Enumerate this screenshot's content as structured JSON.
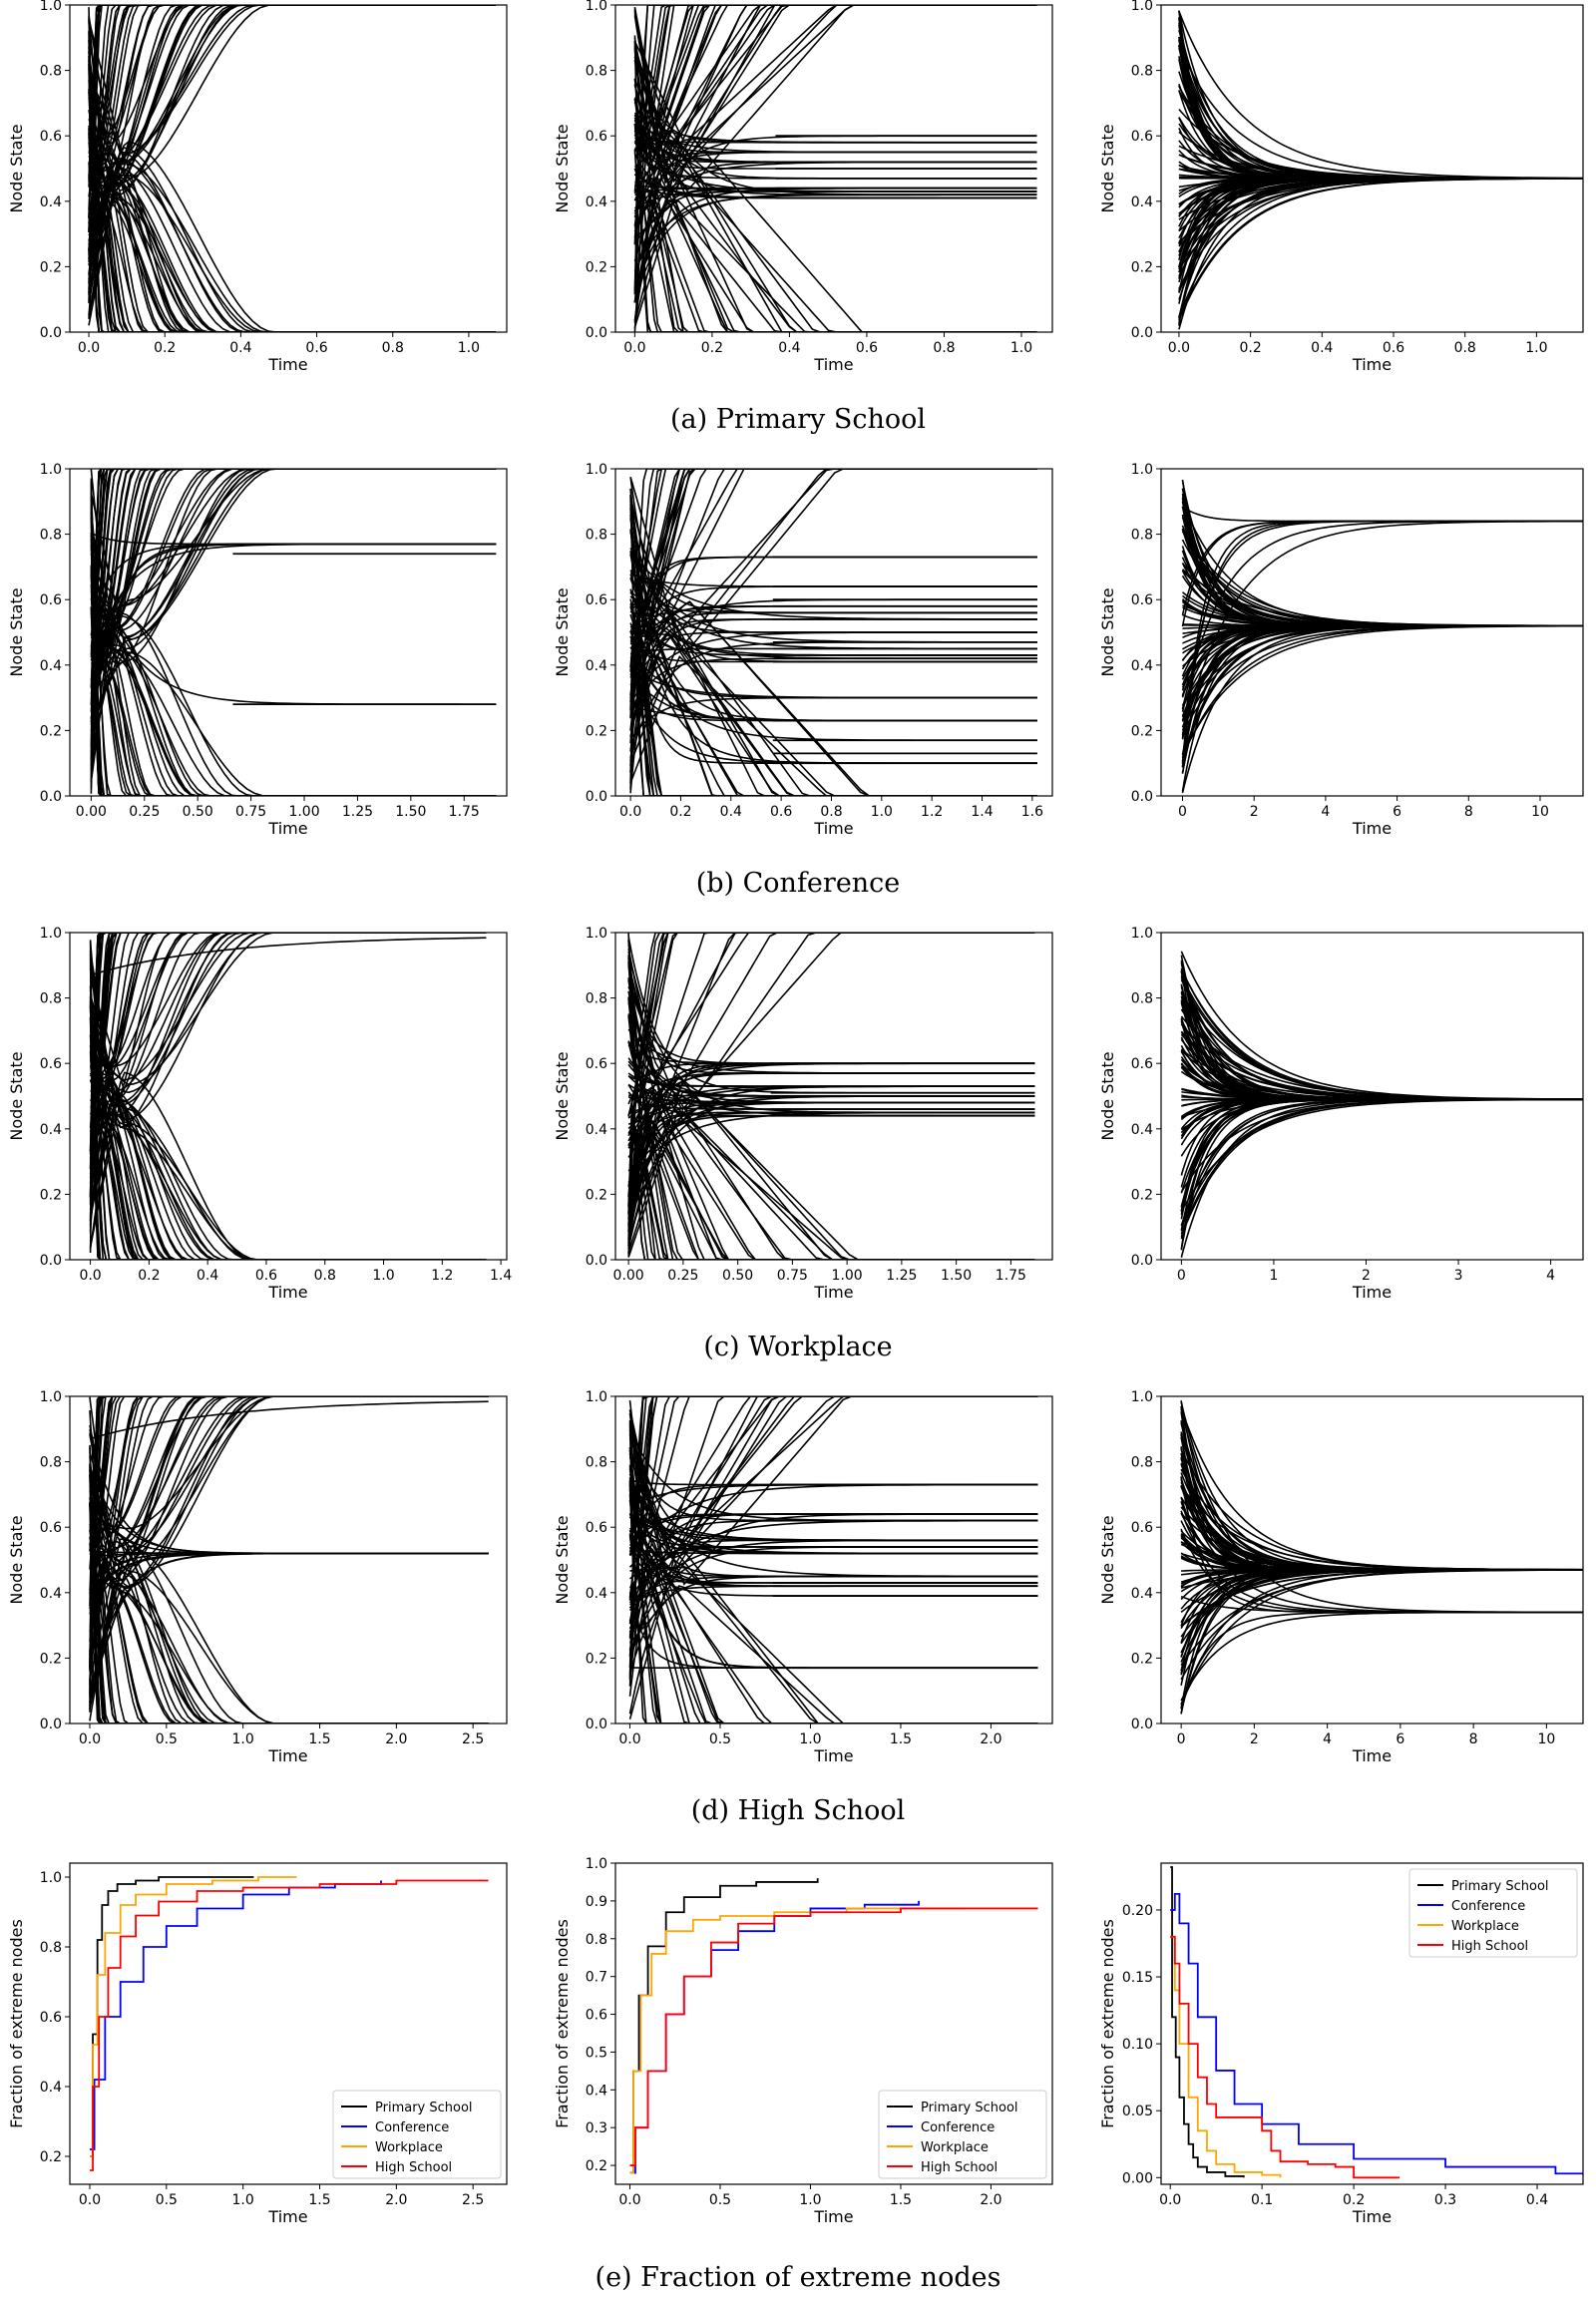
{
  "figure": {
    "captions": [
      "(a) Primary School",
      "(b) Conference",
      "(c) Workplace",
      "(d) High School",
      "(e) Fraction of extreme nodes"
    ]
  },
  "chart_data": [
    {
      "type": "line",
      "panel": "a-1",
      "xlabel": "Time",
      "ylabel": "Node State",
      "xlim": [
        -0.05,
        1.1
      ],
      "ylim": [
        0,
        1
      ],
      "xticks": [
        0.0,
        0.2,
        0.4,
        0.6,
        0.8,
        1.0
      ],
      "xtick_labels": [
        "0.0",
        "0.2",
        "0.4",
        "0.6",
        "0.8",
        "1.0"
      ],
      "yticks": [
        0,
        0.2,
        0.4,
        0.6,
        0.8,
        1.0
      ],
      "ytick_labels": [
        "0.0",
        "0.2",
        "0.4",
        "0.6",
        "0.8",
        "1.0"
      ],
      "dynamics": "polarize",
      "t_end": 1.07,
      "settled": []
    },
    {
      "type": "line",
      "panel": "a-2",
      "xlabel": "Time",
      "ylabel": "Node State",
      "xlim": [
        -0.05,
        1.08
      ],
      "ylim": [
        0,
        1
      ],
      "xticks": [
        0.0,
        0.2,
        0.4,
        0.6,
        0.8,
        1.0
      ],
      "xtick_labels": [
        "0.0",
        "0.2",
        "0.4",
        "0.6",
        "0.8",
        "1.0"
      ],
      "yticks": [
        0,
        0.2,
        0.4,
        0.6,
        0.8,
        1.0
      ],
      "ytick_labels": [
        "0.0",
        "0.2",
        "0.4",
        "0.6",
        "0.8",
        "1.0"
      ],
      "dynamics": "clusters",
      "t_end": 1.04,
      "settled": [
        0.6,
        0.58,
        0.55,
        0.52,
        0.5,
        0.47,
        0.44,
        0.43,
        0.42,
        0.41
      ]
    },
    {
      "type": "line",
      "panel": "a-3",
      "xlabel": "Time",
      "ylabel": "Node State",
      "xlim": [
        -0.05,
        1.13
      ],
      "ylim": [
        0,
        1
      ],
      "xticks": [
        0.0,
        0.2,
        0.4,
        0.6,
        0.8,
        1.0
      ],
      "xtick_labels": [
        "0.0",
        "0.2",
        "0.4",
        "0.6",
        "0.8",
        "1.0"
      ],
      "yticks": [
        0,
        0.2,
        0.4,
        0.6,
        0.8,
        1.0
      ],
      "ytick_labels": [
        "0.0",
        "0.2",
        "0.4",
        "0.6",
        "0.8",
        "1.0"
      ],
      "dynamics": "consensus",
      "t_end": 1.13,
      "settled": [
        0.47
      ]
    },
    {
      "type": "line",
      "panel": "b-1",
      "xlabel": "Time",
      "ylabel": "Node State",
      "xlim": [
        -0.1,
        1.95
      ],
      "ylim": [
        0,
        1
      ],
      "xticks": [
        0.0,
        0.25,
        0.5,
        0.75,
        1.0,
        1.25,
        1.5,
        1.75
      ],
      "xtick_labels": [
        "0.00",
        "0.25",
        "0.50",
        "0.75",
        "1.00",
        "1.25",
        "1.50",
        "1.75"
      ],
      "yticks": [
        0,
        0.2,
        0.4,
        0.6,
        0.8,
        1.0
      ],
      "ytick_labels": [
        "0.0",
        "0.2",
        "0.4",
        "0.6",
        "0.8",
        "1.0"
      ],
      "dynamics": "polarize",
      "t_end": 1.9,
      "settled": [
        0.77,
        0.74,
        0.28
      ]
    },
    {
      "type": "line",
      "panel": "b-2",
      "xlabel": "Time",
      "ylabel": "Node State",
      "xlim": [
        -0.06,
        1.68
      ],
      "ylim": [
        0,
        1
      ],
      "xticks": [
        0.0,
        0.2,
        0.4,
        0.6,
        0.8,
        1.0,
        1.2,
        1.4,
        1.6
      ],
      "xtick_labels": [
        "0.0",
        "0.2",
        "0.4",
        "0.6",
        "0.8",
        "1.0",
        "1.2",
        "1.4",
        "1.6"
      ],
      "yticks": [
        0,
        0.2,
        0.4,
        0.6,
        0.8,
        1.0
      ],
      "ytick_labels": [
        "0.0",
        "0.2",
        "0.4",
        "0.6",
        "0.8",
        "1.0"
      ],
      "dynamics": "clusters",
      "t_end": 1.62,
      "settled": [
        0.73,
        0.64,
        0.6,
        0.58,
        0.56,
        0.54,
        0.5,
        0.47,
        0.45,
        0.43,
        0.42,
        0.41,
        0.3,
        0.23,
        0.17,
        0.13,
        0.1
      ]
    },
    {
      "type": "line",
      "panel": "b-3",
      "xlabel": "Time",
      "ylabel": "Node State",
      "xlim": [
        -0.6,
        11.2
      ],
      "ylim": [
        0,
        1
      ],
      "xticks": [
        0,
        2,
        4,
        6,
        8,
        10
      ],
      "xtick_labels": [
        "0",
        "2",
        "4",
        "6",
        "8",
        "10"
      ],
      "yticks": [
        0,
        0.2,
        0.4,
        0.6,
        0.8,
        1.0
      ],
      "ytick_labels": [
        "0.0",
        "0.2",
        "0.4",
        "0.6",
        "0.8",
        "1.0"
      ],
      "dynamics": "consensus",
      "t_end": 11.2,
      "settled": [
        0.52,
        0.84
      ]
    },
    {
      "type": "line",
      "panel": "c-1",
      "xlabel": "Time",
      "ylabel": "Node State",
      "xlim": [
        -0.07,
        1.42
      ],
      "ylim": [
        0,
        1
      ],
      "xticks": [
        0.0,
        0.2,
        0.4,
        0.6,
        0.8,
        1.0,
        1.2,
        1.4
      ],
      "xtick_labels": [
        "0.0",
        "0.2",
        "0.4",
        "0.6",
        "0.8",
        "1.0",
        "1.2",
        "1.4"
      ],
      "yticks": [
        0,
        0.2,
        0.4,
        0.6,
        0.8,
        1.0
      ],
      "ytick_labels": [
        "0.0",
        "0.2",
        "0.4",
        "0.6",
        "0.8",
        "1.0"
      ],
      "dynamics": "polarize",
      "t_end": 1.35,
      "settled": []
    },
    {
      "type": "line",
      "panel": "c-2",
      "xlabel": "Time",
      "ylabel": "Node State",
      "xlim": [
        -0.06,
        1.94
      ],
      "ylim": [
        0,
        1
      ],
      "xticks": [
        0.0,
        0.25,
        0.5,
        0.75,
        1.0,
        1.25,
        1.5,
        1.75
      ],
      "xtick_labels": [
        "0.00",
        "0.25",
        "0.50",
        "0.75",
        "1.00",
        "1.25",
        "1.50",
        "1.75"
      ],
      "yticks": [
        0,
        0.2,
        0.4,
        0.6,
        0.8,
        1.0
      ],
      "ytick_labels": [
        "0.0",
        "0.2",
        "0.4",
        "0.6",
        "0.8",
        "1.0"
      ],
      "dynamics": "clusters",
      "t_end": 1.86,
      "settled": [
        0.6,
        0.57,
        0.53,
        0.51,
        0.5,
        0.48,
        0.46,
        0.45,
        0.44
      ]
    },
    {
      "type": "line",
      "panel": "c-3",
      "xlabel": "Time",
      "ylabel": "Node State",
      "xlim": [
        -0.22,
        4.35
      ],
      "ylim": [
        0,
        1
      ],
      "xticks": [
        0,
        1,
        2,
        3,
        4
      ],
      "xtick_labels": [
        "0",
        "1",
        "2",
        "3",
        "4"
      ],
      "yticks": [
        0,
        0.2,
        0.4,
        0.6,
        0.8,
        1.0
      ],
      "ytick_labels": [
        "0.0",
        "0.2",
        "0.4",
        "0.6",
        "0.8",
        "1.0"
      ],
      "dynamics": "consensus",
      "t_end": 4.35,
      "settled": [
        0.49
      ]
    },
    {
      "type": "line",
      "panel": "d-1",
      "xlabel": "Time",
      "ylabel": "Node State",
      "xlim": [
        -0.13,
        2.72
      ],
      "ylim": [
        0,
        1
      ],
      "xticks": [
        0.0,
        0.5,
        1.0,
        1.5,
        2.0,
        2.5
      ],
      "xtick_labels": [
        "0.0",
        "0.5",
        "1.0",
        "1.5",
        "2.0",
        "2.5"
      ],
      "yticks": [
        0,
        0.2,
        0.4,
        0.6,
        0.8,
        1.0
      ],
      "ytick_labels": [
        "0.0",
        "0.2",
        "0.4",
        "0.6",
        "0.8",
        "1.0"
      ],
      "dynamics": "polarize",
      "t_end": 2.6,
      "settled": [
        0.52
      ]
    },
    {
      "type": "line",
      "panel": "d-2",
      "xlabel": "Time",
      "ylabel": "Node State",
      "xlim": [
        -0.08,
        2.34
      ],
      "ylim": [
        0,
        1
      ],
      "xticks": [
        0.0,
        0.5,
        1.0,
        1.5,
        2.0
      ],
      "xtick_labels": [
        "0.0",
        "0.5",
        "1.0",
        "1.5",
        "2.0"
      ],
      "yticks": [
        0,
        0.2,
        0.4,
        0.6,
        0.8,
        1.0
      ],
      "ytick_labels": [
        "0.0",
        "0.2",
        "0.4",
        "0.6",
        "0.8",
        "1.0"
      ],
      "dynamics": "clusters",
      "t_end": 2.26,
      "settled": [
        0.73,
        0.64,
        0.62,
        0.56,
        0.54,
        0.52,
        0.45,
        0.43,
        0.42,
        0.39,
        0.17
      ]
    },
    {
      "type": "line",
      "panel": "d-3",
      "xlabel": "Time",
      "ylabel": "Node State",
      "xlim": [
        -0.55,
        11.0
      ],
      "ylim": [
        0,
        1
      ],
      "xticks": [
        0,
        2,
        4,
        6,
        8,
        10
      ],
      "xtick_labels": [
        "0",
        "2",
        "4",
        "6",
        "8",
        "10"
      ],
      "yticks": [
        0,
        0.2,
        0.4,
        0.6,
        0.8,
        1.0
      ],
      "ytick_labels": [
        "0.0",
        "0.2",
        "0.4",
        "0.6",
        "0.8",
        "1.0"
      ],
      "dynamics": "consensus",
      "t_end": 11.0,
      "settled": [
        0.47,
        0.34
      ]
    },
    {
      "type": "line",
      "panel": "e-1",
      "xlabel": "Time",
      "ylabel": "Fraction of extreme nodes",
      "xlim": [
        -0.13,
        2.72
      ],
      "ylim": [
        0.12,
        1.04
      ],
      "xticks": [
        0.0,
        0.5,
        1.0,
        1.5,
        2.0,
        2.5
      ],
      "xtick_labels": [
        "0.0",
        "0.5",
        "1.0",
        "1.5",
        "2.0",
        "2.5"
      ],
      "yticks": [
        0.2,
        0.4,
        0.6,
        0.8,
        1.0
      ],
      "ytick_labels": [
        "0.2",
        "0.4",
        "0.6",
        "0.8",
        "1.0"
      ],
      "legend": "lower-right",
      "series": [
        {
          "name": "Primary School",
          "color": "#000000",
          "x": [
            0,
            0.02,
            0.05,
            0.08,
            0.12,
            0.18,
            0.3,
            0.45,
            0.7,
            1.07
          ],
          "y": [
            0.2,
            0.55,
            0.82,
            0.92,
            0.96,
            0.98,
            0.99,
            1.0,
            1.0,
            1.0
          ]
        },
        {
          "name": "Conference",
          "color": "#0000ff",
          "x": [
            0,
            0.03,
            0.1,
            0.2,
            0.35,
            0.5,
            0.7,
            1.0,
            1.3,
            1.6,
            1.9
          ],
          "y": [
            0.22,
            0.42,
            0.6,
            0.7,
            0.8,
            0.86,
            0.91,
            0.95,
            0.97,
            0.98,
            0.99
          ]
        },
        {
          "name": "Workplace",
          "color": "#ffa500",
          "x": [
            0,
            0.02,
            0.05,
            0.1,
            0.2,
            0.3,
            0.5,
            0.8,
            1.1,
            1.35
          ],
          "y": [
            0.2,
            0.52,
            0.72,
            0.84,
            0.92,
            0.95,
            0.98,
            0.99,
            1.0,
            1.0
          ]
        },
        {
          "name": "High School",
          "color": "#ff0000",
          "x": [
            0,
            0.02,
            0.06,
            0.12,
            0.2,
            0.3,
            0.45,
            0.7,
            1.0,
            1.5,
            2.0,
            2.6
          ],
          "y": [
            0.16,
            0.4,
            0.6,
            0.74,
            0.83,
            0.89,
            0.93,
            0.96,
            0.97,
            0.98,
            0.99,
            0.99
          ]
        }
      ]
    },
    {
      "type": "line",
      "panel": "e-2",
      "xlabel": "Time",
      "ylabel": "Fraction of extreme nodes",
      "xlim": [
        -0.08,
        2.34
      ],
      "ylim": [
        0.15,
        1.0
      ],
      "xticks": [
        0.0,
        0.5,
        1.0,
        1.5,
        2.0
      ],
      "xtick_labels": [
        "0.0",
        "0.5",
        "1.0",
        "1.5",
        "2.0"
      ],
      "yticks": [
        0.2,
        0.3,
        0.4,
        0.5,
        0.6,
        0.7,
        0.8,
        0.9,
        1.0
      ],
      "ytick_labels": [
        "0.2",
        "0.3",
        "0.4",
        "0.5",
        "0.6",
        "0.7",
        "0.8",
        "0.9",
        "1.0"
      ],
      "legend": "lower-right",
      "series": [
        {
          "name": "Primary School",
          "color": "#000000",
          "x": [
            0,
            0.02,
            0.05,
            0.1,
            0.2,
            0.3,
            0.5,
            0.7,
            1.04
          ],
          "y": [
            0.18,
            0.45,
            0.65,
            0.78,
            0.87,
            0.91,
            0.94,
            0.95,
            0.96
          ]
        },
        {
          "name": "Conference",
          "color": "#0000ff",
          "x": [
            0,
            0.03,
            0.1,
            0.2,
            0.3,
            0.45,
            0.6,
            0.8,
            1.0,
            1.3,
            1.6
          ],
          "y": [
            0.18,
            0.3,
            0.45,
            0.6,
            0.7,
            0.77,
            0.82,
            0.86,
            0.88,
            0.89,
            0.9
          ]
        },
        {
          "name": "Workplace",
          "color": "#ffa500",
          "x": [
            0,
            0.02,
            0.06,
            0.12,
            0.2,
            0.35,
            0.5,
            0.8,
            1.2,
            1.86
          ],
          "y": [
            0.18,
            0.45,
            0.65,
            0.76,
            0.82,
            0.85,
            0.86,
            0.87,
            0.88,
            0.88
          ]
        },
        {
          "name": "High School",
          "color": "#ff0000",
          "x": [
            0,
            0.03,
            0.1,
            0.2,
            0.3,
            0.45,
            0.6,
            0.8,
            1.0,
            1.5,
            2.26
          ],
          "y": [
            0.2,
            0.3,
            0.45,
            0.6,
            0.7,
            0.79,
            0.84,
            0.86,
            0.87,
            0.88,
            0.88
          ]
        }
      ]
    },
    {
      "type": "line",
      "panel": "e-3",
      "xlabel": "Time",
      "ylabel": "Fraction of extreme nodes",
      "xlim": [
        -0.01,
        0.45
      ],
      "ylim": [
        -0.005,
        0.235
      ],
      "xticks": [
        0.0,
        0.1,
        0.2,
        0.3,
        0.4
      ],
      "xtick_labels": [
        "0.0",
        "0.1",
        "0.2",
        "0.3",
        "0.4"
      ],
      "yticks": [
        0.0,
        0.05,
        0.1,
        0.15,
        0.2
      ],
      "ytick_labels": [
        "0.00",
        "0.05",
        "0.10",
        "0.15",
        "0.20"
      ],
      "legend": "top-right",
      "series": [
        {
          "name": "Primary School",
          "color": "#000000",
          "x": [
            0,
            0.002,
            0.006,
            0.01,
            0.015,
            0.02,
            0.025,
            0.03,
            0.04,
            0.06,
            0.08
          ],
          "y": [
            0.232,
            0.12,
            0.09,
            0.06,
            0.04,
            0.025,
            0.015,
            0.008,
            0.004,
            0.001,
            0.0
          ]
        },
        {
          "name": "Conference",
          "color": "#0000ff",
          "x": [
            0,
            0.005,
            0.01,
            0.02,
            0.03,
            0.05,
            0.07,
            0.1,
            0.14,
            0.2,
            0.3,
            0.42,
            0.45
          ],
          "y": [
            0.2,
            0.212,
            0.19,
            0.16,
            0.12,
            0.08,
            0.055,
            0.04,
            0.025,
            0.014,
            0.008,
            0.003,
            0.002
          ]
        },
        {
          "name": "Workplace",
          "color": "#ffa500",
          "x": [
            0,
            0.005,
            0.01,
            0.02,
            0.03,
            0.04,
            0.05,
            0.07,
            0.1,
            0.12
          ],
          "y": [
            0.18,
            0.14,
            0.1,
            0.06,
            0.035,
            0.02,
            0.01,
            0.004,
            0.002,
            0.0
          ]
        },
        {
          "name": "High School",
          "color": "#ff0000",
          "x": [
            0,
            0.005,
            0.01,
            0.02,
            0.03,
            0.04,
            0.05,
            0.06,
            0.08,
            0.1,
            0.11,
            0.12,
            0.15,
            0.18,
            0.2,
            0.25
          ],
          "y": [
            0.18,
            0.16,
            0.13,
            0.1,
            0.075,
            0.055,
            0.045,
            0.045,
            0.045,
            0.035,
            0.02,
            0.012,
            0.01,
            0.008,
            0.0,
            0.0
          ]
        }
      ]
    }
  ]
}
